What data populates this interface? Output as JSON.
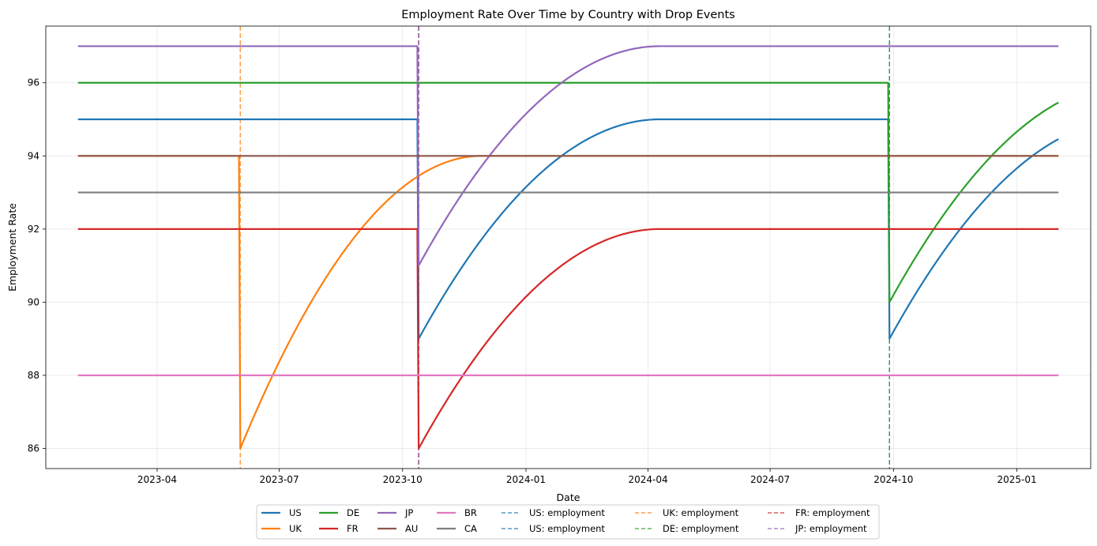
{
  "chart_data": {
    "type": "line",
    "title": "Employment Rate Over Time by Country with Drop Events",
    "xlabel": "Date",
    "ylabel": "Employment Rate",
    "x_range": [
      "2023-02-01",
      "2025-02-01"
    ],
    "ylim": [
      85.45,
      97.55
    ],
    "grid": true,
    "legend_placement": "bottom-center",
    "x_ticks": [
      "2023-04",
      "2023-07",
      "2023-10",
      "2024-01",
      "2024-04",
      "2024-07",
      "2024-10",
      "2025-01"
    ],
    "y_ticks": [
      86,
      88,
      90,
      92,
      94,
      96
    ],
    "series": [
      {
        "name": "US",
        "color": "#1f77b4",
        "baseline": 95,
        "drops": [
          {
            "date": "2023-10-13",
            "min": 89,
            "recover_days": 180
          },
          {
            "date": "2024-09-28",
            "min": 89,
            "recover_days": 180
          }
        ]
      },
      {
        "name": "UK",
        "color": "#ff7f0e",
        "baseline": 94,
        "drops": [
          {
            "date": "2023-06-02",
            "min": 86,
            "recover_days": 180
          }
        ]
      },
      {
        "name": "DE",
        "color": "#2ca02c",
        "baseline": 96,
        "drops": [
          {
            "date": "2024-09-28",
            "min": 90,
            "recover_days": 180
          }
        ]
      },
      {
        "name": "FR",
        "color": "#d62728",
        "baseline": 92,
        "drops": [
          {
            "date": "2023-10-13",
            "min": 86,
            "recover_days": 180
          }
        ]
      },
      {
        "name": "JP",
        "color": "#9467bd",
        "baseline": 97,
        "drops": [
          {
            "date": "2023-10-13",
            "min": 91,
            "recover_days": 180
          }
        ]
      },
      {
        "name": "AU",
        "color": "#8c564b",
        "baseline": 94,
        "drops": []
      },
      {
        "name": "BR",
        "color": "#e377c2",
        "baseline": 88,
        "drops": []
      },
      {
        "name": "CA",
        "color": "#7f7f7f",
        "baseline": 93,
        "drops": []
      }
    ],
    "events": [
      {
        "label": "US: employment",
        "date": "2023-10-13",
        "color": "#1f77b4"
      },
      {
        "label": "US: employment",
        "date": "2024-09-28",
        "color": "#1f77b4"
      },
      {
        "label": "UK: employment",
        "date": "2023-06-02",
        "color": "#ff7f0e"
      },
      {
        "label": "DE: employment",
        "date": "2024-09-28",
        "color": "#2ca02c"
      },
      {
        "label": "FR: employment",
        "date": "2023-10-13",
        "color": "#d62728"
      },
      {
        "label": "JP: employment",
        "date": "2023-10-13",
        "color": "#9467bd"
      }
    ]
  }
}
